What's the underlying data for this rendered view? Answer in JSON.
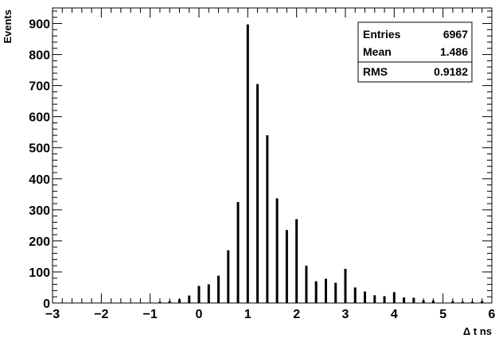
{
  "chart_data": {
    "type": "bar",
    "style": "histogram-spikes",
    "xlabel": "Δ t ns",
    "ylabel": "Events",
    "xlim": [
      -3,
      6
    ],
    "ylim": [
      0,
      950
    ],
    "x_ticks": [
      "−3",
      "−2",
      "−1",
      "0",
      "1",
      "2",
      "3",
      "4",
      "5",
      "6"
    ],
    "y_ticks": [
      "0",
      "100",
      "200",
      "300",
      "400",
      "500",
      "600",
      "700",
      "800",
      "900"
    ],
    "grid": false,
    "x": [
      -0.8,
      -0.6,
      -0.4,
      -0.2,
      0.0,
      0.2,
      0.4,
      0.6,
      0.8,
      1.0,
      1.2,
      1.4,
      1.6,
      1.8,
      2.0,
      2.2,
      2.4,
      2.6,
      2.8,
      3.0,
      3.2,
      3.4,
      3.6,
      3.8,
      4.0,
      4.2,
      4.4,
      4.6,
      4.8,
      5.2,
      5.4,
      5.6,
      5.8
    ],
    "values": [
      4,
      6,
      12,
      24,
      55,
      60,
      88,
      170,
      325,
      897,
      705,
      540,
      337,
      235,
      270,
      120,
      70,
      78,
      65,
      110,
      50,
      37,
      25,
      22,
      35,
      18,
      17,
      9,
      8,
      6,
      4,
      4,
      6
    ],
    "stats_box": {
      "rows": [
        {
          "label": "Entries",
          "value": "6967"
        },
        {
          "label": "Mean",
          "value": "1.486"
        },
        {
          "label": "RMS",
          "value": "0.9182"
        }
      ]
    },
    "colors": {
      "bars": "#000000",
      "frame": "#000000",
      "background": "#ffffff"
    }
  }
}
